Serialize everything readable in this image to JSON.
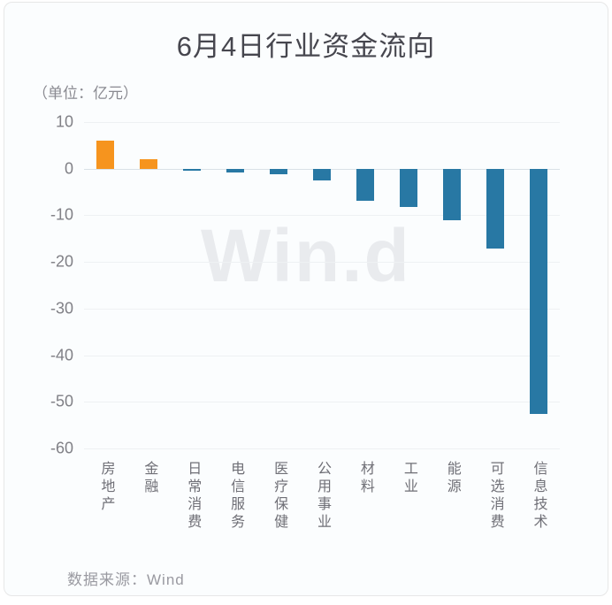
{
  "card": {
    "title": "6月4日行业资金流向",
    "unit_label": "（单位：亿元）",
    "watermark": "Win.d",
    "source": "数据来源：Wind"
  },
  "chart_data": {
    "type": "bar",
    "title": "6月4日行业资金流向",
    "unit": "亿元",
    "categories": [
      "房地产",
      "金融",
      "日常消费",
      "电信服务",
      "医疗保健",
      "公用事业",
      "材料",
      "工业",
      "能源",
      "可选消费",
      "信息技术"
    ],
    "values": [
      6.1,
      2.1,
      -0.5,
      -0.8,
      -1.2,
      -2.5,
      -6.9,
      -8.3,
      -11.0,
      -17.2,
      -52.6
    ],
    "ylim": [
      -60,
      10
    ],
    "yticks": [
      10,
      0,
      -10,
      -20,
      -30,
      -40,
      -50,
      -60
    ],
    "grid": true,
    "legend": "none",
    "positive_color": "#f6941e",
    "negative_color": "#2878a4",
    "xlabel": "",
    "ylabel": "亿元"
  }
}
